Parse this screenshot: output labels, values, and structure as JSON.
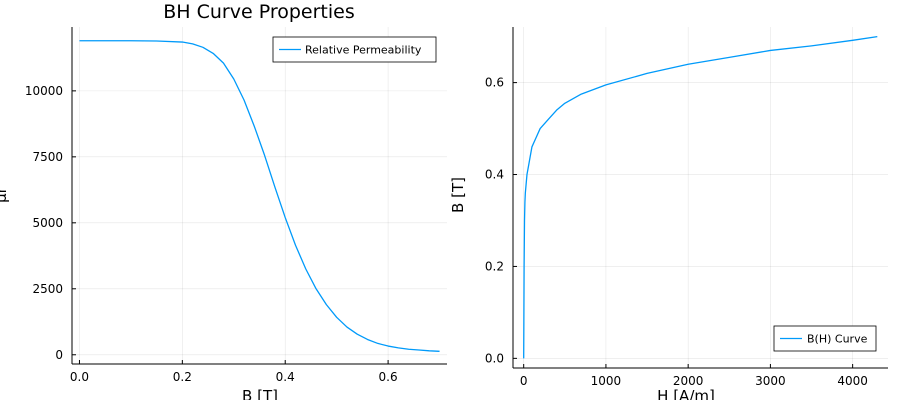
{
  "chart_data": [
    {
      "type": "line",
      "title": "BH Curve Properties",
      "xlabel": "B [T]",
      "ylabel": "μr",
      "xlim": [
        -0.0145,
        0.7145
      ],
      "ylim": [
        -350,
        12420
      ],
      "xticks": [
        0.0,
        0.2,
        0.4,
        0.6
      ],
      "xtick_labels": [
        "0.0",
        "0.2",
        "0.4",
        "0.6"
      ],
      "yticks": [
        0,
        2500,
        5000,
        7500,
        10000
      ],
      "ytick_labels": [
        "0",
        "2500",
        "5000",
        "7500",
        "10000"
      ],
      "grid": true,
      "legend_position": "top-right",
      "series": [
        {
          "name": "Relative Permeability",
          "color": "#009AFA",
          "x": [
            0.0,
            0.05,
            0.1,
            0.15,
            0.2,
            0.22,
            0.24,
            0.26,
            0.28,
            0.3,
            0.32,
            0.34,
            0.36,
            0.38,
            0.4,
            0.42,
            0.44,
            0.46,
            0.48,
            0.5,
            0.52,
            0.54,
            0.56,
            0.58,
            0.6,
            0.62,
            0.64,
            0.66,
            0.68,
            0.7
          ],
          "y": [
            11900,
            11900,
            11900,
            11890,
            11850,
            11780,
            11650,
            11420,
            11050,
            10450,
            9650,
            8650,
            7550,
            6350,
            5200,
            4150,
            3250,
            2500,
            1900,
            1420,
            1050,
            780,
            580,
            430,
            330,
            260,
            210,
            180,
            150,
            130
          ]
        }
      ]
    },
    {
      "type": "line",
      "title": "",
      "xlabel": "H [A/m]",
      "ylabel": "B [T]",
      "xlim": [
        -130,
        4430
      ],
      "ylim": [
        -0.021,
        0.721
      ],
      "xticks": [
        0,
        1000,
        2000,
        3000,
        4000
      ],
      "xtick_labels": [
        "0",
        "1000",
        "2000",
        "3000",
        "4000"
      ],
      "yticks": [
        0.0,
        0.2,
        0.4,
        0.6
      ],
      "ytick_labels": [
        "0.0",
        "0.2",
        "0.4",
        "0.6"
      ],
      "grid": true,
      "legend_position": "bottom-right",
      "series": [
        {
          "name": "B(H) Curve",
          "color": "#009AFA",
          "x": [
            0,
            2,
            5,
            10,
            15,
            20,
            30,
            40,
            60,
            80,
            100,
            150,
            200,
            300,
            400,
            500,
            700,
            1000,
            1500,
            2000,
            2500,
            3000,
            3500,
            4000,
            4300
          ],
          "y": [
            0.0,
            0.08,
            0.2,
            0.3,
            0.34,
            0.36,
            0.38,
            0.4,
            0.42,
            0.44,
            0.46,
            0.48,
            0.5,
            0.52,
            0.54,
            0.555,
            0.575,
            0.595,
            0.62,
            0.64,
            0.655,
            0.67,
            0.68,
            0.692,
            0.7
          ]
        }
      ]
    }
  ]
}
